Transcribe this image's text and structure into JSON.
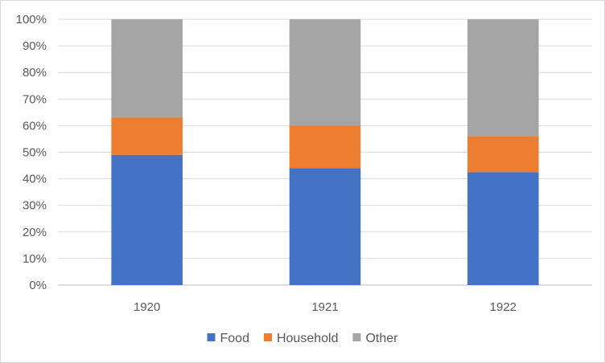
{
  "chart_data": {
    "type": "bar",
    "stacked": true,
    "percent_stacked": true,
    "title": "",
    "xlabel": "",
    "ylabel": "",
    "categories": [
      "1920",
      "1921",
      "1922"
    ],
    "series": [
      {
        "name": "Food",
        "color": "#4472C4",
        "values": [
          49,
          44,
          42.5
        ]
      },
      {
        "name": "Household",
        "color": "#ED7D31",
        "values": [
          14,
          16,
          13.5
        ]
      },
      {
        "name": "Other",
        "color": "#A5A5A5",
        "values": [
          37,
          40,
          44
        ]
      }
    ],
    "ylim": [
      0,
      100
    ],
    "yticks": [
      "0%",
      "10%",
      "20%",
      "30%",
      "40%",
      "50%",
      "60%",
      "70%",
      "80%",
      "90%",
      "100%"
    ],
    "grid": true,
    "legend_position": "bottom"
  }
}
